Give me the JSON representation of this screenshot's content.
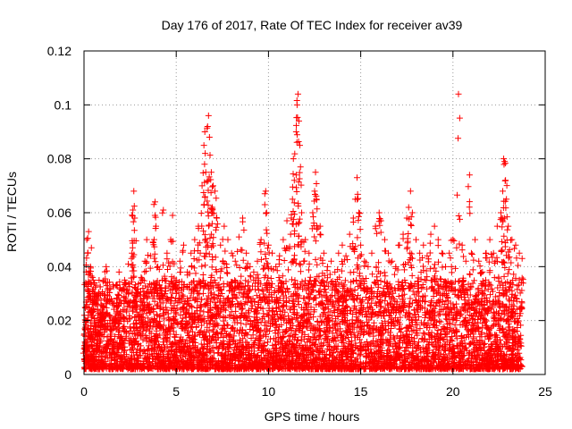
{
  "chart_data": {
    "type": "scatter",
    "title": "Day 176 of 2017, Rate Of TEC Index for receiver av39",
    "xlabel": "GPS time / hours",
    "ylabel": "ROTI / TECUs",
    "xlim": [
      0,
      25
    ],
    "ylim": [
      0,
      0.12
    ],
    "xticks": [
      0,
      5,
      10,
      15,
      20,
      25
    ],
    "yticks": [
      0,
      0.02,
      0.04,
      0.06,
      0.08,
      0.1,
      0.12
    ],
    "xtick_labels": [
      "0",
      "5",
      "10",
      "15",
      "20",
      "25"
    ],
    "ytick_labels": [
      "0",
      "0.02",
      "0.04",
      "0.06",
      "0.08",
      "0.1",
      "0.12"
    ],
    "grid": true,
    "marker": "+",
    "color": "#ff0000",
    "series": [
      {
        "points": [
          [
            0.05,
            0.012
          ],
          [
            0.1,
            0.02
          ],
          [
            0.15,
            0.05
          ],
          [
            0.2,
            0.045
          ],
          [
            0.25,
            0.053
          ],
          [
            0.3,
            0.03
          ],
          [
            0.35,
            0.04
          ],
          [
            0.4,
            0.047
          ],
          [
            0.45,
            0.026
          ],
          [
            0.5,
            0.035
          ],
          [
            0.6,
            0.018
          ],
          [
            0.7,
            0.028
          ],
          [
            0.8,
            0.015
          ],
          [
            0.9,
            0.022
          ],
          [
            1.0,
            0.03
          ],
          [
            1.1,
            0.025
          ],
          [
            1.2,
            0.04
          ],
          [
            1.3,
            0.018
          ],
          [
            1.4,
            0.027
          ],
          [
            1.6,
            0.02
          ],
          [
            1.8,
            0.033
          ],
          [
            1.9,
            0.038
          ],
          [
            2.0,
            0.022
          ],
          [
            2.2,
            0.035
          ],
          [
            2.4,
            0.041
          ],
          [
            2.6,
            0.045
          ],
          [
            2.65,
            0.061
          ],
          [
            2.7,
            0.068
          ],
          [
            2.75,
            0.058
          ],
          [
            2.9,
            0.03
          ],
          [
            3.1,
            0.036
          ],
          [
            3.3,
            0.042
          ],
          [
            3.4,
            0.05
          ],
          [
            3.6,
            0.044
          ],
          [
            3.8,
            0.05
          ],
          [
            3.85,
            0.064
          ],
          [
            3.9,
            0.055
          ],
          [
            4.0,
            0.04
          ],
          [
            4.2,
            0.032
          ],
          [
            4.3,
            0.061
          ],
          [
            4.5,
            0.045
          ],
          [
            4.7,
            0.05
          ],
          [
            4.8,
            0.059
          ],
          [
            5.0,
            0.035
          ],
          [
            5.2,
            0.042
          ],
          [
            5.4,
            0.048
          ],
          [
            5.6,
            0.038
          ],
          [
            5.8,
            0.045
          ],
          [
            6.0,
            0.05
          ],
          [
            6.2,
            0.055
          ],
          [
            6.3,
            0.045
          ],
          [
            6.4,
            0.07
          ],
          [
            6.5,
            0.085
          ],
          [
            6.55,
            0.09
          ],
          [
            6.6,
            0.075
          ],
          [
            6.7,
            0.092
          ],
          [
            6.75,
            0.096
          ],
          [
            6.8,
            0.088
          ],
          [
            6.9,
            0.075
          ],
          [
            6.95,
            0.062
          ],
          [
            7.0,
            0.07
          ],
          [
            7.1,
            0.068
          ],
          [
            7.2,
            0.058
          ],
          [
            7.4,
            0.048
          ],
          [
            7.6,
            0.055
          ],
          [
            7.8,
            0.05
          ],
          [
            8.0,
            0.045
          ],
          [
            8.2,
            0.042
          ],
          [
            8.4,
            0.051
          ],
          [
            8.6,
            0.058
          ],
          [
            8.8,
            0.045
          ],
          [
            9.0,
            0.04
          ],
          [
            9.2,
            0.038
          ],
          [
            9.4,
            0.042
          ],
          [
            9.6,
            0.05
          ],
          [
            9.8,
            0.063
          ],
          [
            9.85,
            0.068
          ],
          [
            9.9,
            0.06
          ],
          [
            10.0,
            0.048
          ],
          [
            10.2,
            0.045
          ],
          [
            10.4,
            0.04
          ],
          [
            10.6,
            0.044
          ],
          [
            10.8,
            0.05
          ],
          [
            11.0,
            0.057
          ],
          [
            11.2,
            0.052
          ],
          [
            11.3,
            0.065
          ],
          [
            11.35,
            0.08
          ],
          [
            11.4,
            0.072
          ],
          [
            11.5,
            0.09
          ],
          [
            11.55,
            0.1
          ],
          [
            11.6,
            0.104
          ],
          [
            11.65,
            0.094
          ],
          [
            11.7,
            0.085
          ],
          [
            11.8,
            0.06
          ],
          [
            12.0,
            0.05
          ],
          [
            12.2,
            0.045
          ],
          [
            12.4,
            0.06
          ],
          [
            12.5,
            0.068
          ],
          [
            12.55,
            0.075
          ],
          [
            12.6,
            0.065
          ],
          [
            12.8,
            0.055
          ],
          [
            13.0,
            0.045
          ],
          [
            13.2,
            0.04
          ],
          [
            13.4,
            0.042
          ],
          [
            13.6,
            0.038
          ],
          [
            13.8,
            0.045
          ],
          [
            14.0,
            0.048
          ],
          [
            14.2,
            0.044
          ],
          [
            14.4,
            0.052
          ],
          [
            14.6,
            0.058
          ],
          [
            14.7,
            0.065
          ],
          [
            14.8,
            0.073
          ],
          [
            14.9,
            0.06
          ],
          [
            15.0,
            0.048
          ],
          [
            15.2,
            0.042
          ],
          [
            15.4,
            0.04
          ],
          [
            15.6,
            0.045
          ],
          [
            15.8,
            0.055
          ],
          [
            16.0,
            0.06
          ],
          [
            16.1,
            0.057
          ],
          [
            16.3,
            0.05
          ],
          [
            16.5,
            0.045
          ],
          [
            16.7,
            0.042
          ],
          [
            16.9,
            0.04
          ],
          [
            17.1,
            0.048
          ],
          [
            17.3,
            0.052
          ],
          [
            17.5,
            0.058
          ],
          [
            17.6,
            0.062
          ],
          [
            17.7,
            0.068
          ],
          [
            17.8,
            0.06
          ],
          [
            18.0,
            0.05
          ],
          [
            18.2,
            0.045
          ],
          [
            18.4,
            0.048
          ],
          [
            18.6,
            0.044
          ],
          [
            18.8,
            0.052
          ],
          [
            19.0,
            0.055
          ],
          [
            19.2,
            0.05
          ],
          [
            19.4,
            0.045
          ],
          [
            19.6,
            0.04
          ],
          [
            19.8,
            0.045
          ],
          [
            20.0,
            0.05
          ],
          [
            20.2,
            0.047
          ],
          [
            20.3,
            0.104
          ],
          [
            20.5,
            0.048
          ],
          [
            20.7,
            0.042
          ],
          [
            20.9,
            0.074
          ],
          [
            21.0,
            0.045
          ],
          [
            21.2,
            0.05
          ],
          [
            21.4,
            0.042
          ],
          [
            21.6,
            0.038
          ],
          [
            21.8,
            0.045
          ],
          [
            22.0,
            0.05
          ],
          [
            22.2,
            0.045
          ],
          [
            22.4,
            0.055
          ],
          [
            22.6,
            0.06
          ],
          [
            22.7,
            0.068
          ],
          [
            22.75,
            0.08
          ],
          [
            22.8,
            0.079
          ],
          [
            22.85,
            0.072
          ],
          [
            22.9,
            0.065
          ],
          [
            23.0,
            0.055
          ],
          [
            23.2,
            0.05
          ],
          [
            23.4,
            0.048
          ],
          [
            23.6,
            0.045
          ],
          [
            23.75,
            0.043
          ]
        ],
        "baseline": {
          "x_range": [
            0.0,
            23.75
          ],
          "y_range": [
            0.002,
            0.035
          ]
        }
      }
    ]
  }
}
